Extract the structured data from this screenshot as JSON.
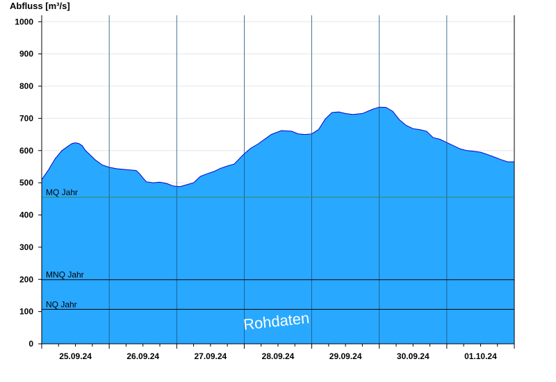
{
  "chart_data": {
    "type": "area",
    "ylabel": "Abfluss [m³/s]",
    "ylim": [
      0,
      1020
    ],
    "yticks": [
      0,
      100,
      200,
      300,
      400,
      500,
      600,
      700,
      800,
      900,
      1000
    ],
    "xlim_days": [
      0,
      7
    ],
    "x_tick_labels": [
      "25.09.24",
      "26.09.24",
      "27.09.24",
      "28.09.24",
      "29.09.24",
      "30.09.24",
      "01.10.24"
    ],
    "grid": "horizontal",
    "colors": {
      "fill": "#29a8ff",
      "line": "#0000cc",
      "mq": "#2e8b57",
      "ref": "#000000",
      "axis": "#000000"
    },
    "series": [
      {
        "x": [
          0.0,
          0.1,
          0.2,
          0.3,
          0.4,
          0.45,
          0.5,
          0.55,
          0.6,
          0.65,
          0.7,
          0.8,
          0.9,
          1.0,
          1.05,
          1.1,
          1.2,
          1.3,
          1.4,
          1.45,
          1.5,
          1.55,
          1.65,
          1.75,
          1.85,
          1.95,
          2.05,
          2.15,
          2.25,
          2.35,
          2.45,
          2.55,
          2.65,
          2.75,
          2.85,
          3.0,
          3.1,
          3.2,
          3.3,
          3.4,
          3.55,
          3.7,
          3.8,
          3.9,
          4.0,
          4.1,
          4.2,
          4.3,
          4.4,
          4.5,
          4.6,
          4.75,
          4.9,
          5.0,
          5.1,
          5.2,
          5.3,
          5.4,
          5.5,
          5.6,
          5.7,
          5.8,
          5.9,
          6.0,
          6.1,
          6.2,
          6.3,
          6.4,
          6.5,
          6.6,
          6.7,
          6.8,
          6.9,
          7.0
        ],
        "values": [
          510,
          540,
          575,
          600,
          615,
          622,
          624,
          622,
          615,
          600,
          590,
          570,
          555,
          548,
          546,
          544,
          542,
          540,
          538,
          528,
          515,
          503,
          500,
          502,
          498,
          490,
          488,
          494,
          500,
          520,
          528,
          535,
          545,
          552,
          558,
          590,
          608,
          620,
          635,
          650,
          662,
          660,
          652,
          650,
          652,
          665,
          698,
          718,
          720,
          715,
          712,
          715,
          728,
          735,
          734,
          722,
          695,
          678,
          668,
          665,
          660,
          640,
          635,
          625,
          615,
          605,
          600,
          598,
          595,
          588,
          580,
          572,
          565,
          565
        ]
      }
    ],
    "reference_lines": [
      {
        "label": "MQ Jahr",
        "value": 455
      },
      {
        "label": "MNQ Jahr",
        "value": 199
      },
      {
        "label": "NQ Jahr",
        "value": 107
      }
    ],
    "annotation": "Rohdaten"
  }
}
